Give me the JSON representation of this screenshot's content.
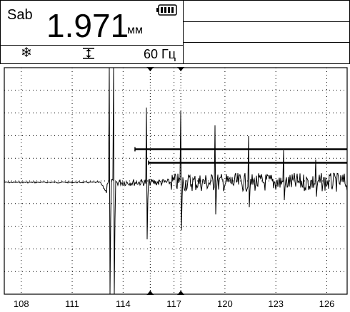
{
  "header": {
    "mode_label": "Sab",
    "value": "1.971",
    "unit": "мм",
    "battery_icon": "battery-full-icon",
    "snow_icon": "snowflake-icon",
    "snow_glyph": "❄",
    "gate_icon": "gate-marker-icon",
    "frequency": "60 Гц"
  },
  "chart_data": {
    "type": "line",
    "x_ticks": [
      "108",
      "111",
      "114",
      "117",
      "120",
      "123",
      "126"
    ],
    "xlim": [
      107.0,
      127.2
    ],
    "x_tick_values": [
      108,
      111,
      114,
      117,
      120,
      123,
      126
    ],
    "gates": [
      {
        "x_start": 114.7,
        "x_end": 127.2,
        "level": 0.64
      },
      {
        "x_start": 115.5,
        "x_end": 127.2,
        "level": 0.58
      }
    ],
    "markers": [
      115.6,
      117.4
    ]
  }
}
